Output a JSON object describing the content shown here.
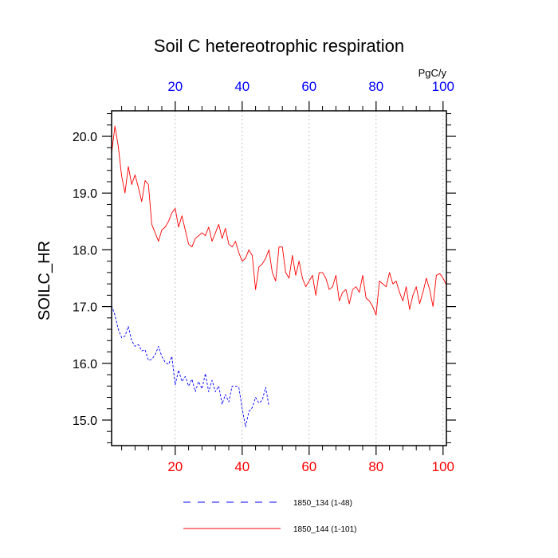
{
  "chart_data": {
    "type": "line",
    "title": "Soil C hetereotrophic respiration",
    "ylabel": "SOILC_HR",
    "units": "PgC/y",
    "xlim": [
      1,
      101
    ],
    "ylim": [
      14.55,
      20.45
    ],
    "grid": "vertical dotted gray",
    "x_ticks_bottom": [
      "20",
      "40",
      "60",
      "80",
      "100"
    ],
    "x_ticks_top": [
      "20",
      "40",
      "60",
      "80",
      "100"
    ],
    "y_ticks": [
      "15.0",
      "16.0",
      "17.0",
      "18.0",
      "19.0",
      "20.0"
    ],
    "x_tick_values": [
      20,
      40,
      60,
      80,
      100
    ],
    "y_tick_values": [
      15,
      16,
      17,
      18,
      19,
      20
    ],
    "legend_placement": "bottom",
    "series": [
      {
        "name": "1850_134 (1-48)",
        "color": "#0000ff",
        "style": "dashed",
        "x_start": 1,
        "values": [
          17.02,
          16.85,
          16.6,
          16.45,
          16.48,
          16.65,
          16.4,
          16.3,
          16.33,
          16.22,
          16.24,
          16.05,
          16.07,
          16.15,
          16.3,
          16.12,
          16.02,
          15.98,
          16.12,
          15.62,
          15.88,
          15.68,
          15.77,
          15.6,
          15.72,
          15.5,
          15.68,
          15.55,
          15.82,
          15.5,
          15.7,
          15.5,
          15.6,
          15.28,
          15.45,
          15.32,
          15.6,
          15.6,
          15.58,
          15.2,
          14.88,
          15.15,
          15.22,
          15.4,
          15.3,
          15.35,
          15.58,
          15.25
        ]
      },
      {
        "name": "1850_144 (1-101)",
        "color": "#ff0000",
        "style": "solid",
        "x_start": 1,
        "values": [
          19.7,
          20.18,
          19.82,
          19.3,
          19.0,
          19.47,
          19.15,
          19.32,
          19.1,
          18.85,
          19.22,
          19.15,
          18.45,
          18.3,
          18.15,
          18.35,
          18.4,
          18.5,
          18.65,
          18.73,
          18.4,
          18.6,
          18.35,
          18.1,
          18.05,
          18.2,
          18.25,
          18.3,
          18.25,
          18.4,
          18.15,
          18.3,
          18.45,
          18.2,
          18.38,
          18.1,
          18.05,
          18.15,
          17.95,
          17.8,
          17.85,
          18.0,
          17.9,
          17.3,
          17.7,
          17.75,
          17.85,
          18.0,
          17.6,
          17.45,
          18.05,
          18.05,
          17.6,
          17.5,
          17.9,
          17.55,
          17.8,
          17.5,
          17.35,
          17.45,
          17.55,
          17.2,
          17.6,
          17.6,
          17.5,
          17.3,
          17.35,
          17.55,
          17.1,
          17.25,
          17.3,
          17.05,
          17.3,
          17.35,
          17.25,
          17.55,
          17.15,
          17.1,
          17.0,
          16.85,
          17.45,
          17.4,
          17.35,
          17.6,
          17.4,
          17.45,
          17.25,
          17.1,
          17.35,
          16.95,
          17.2,
          17.35,
          17.05,
          17.25,
          17.5,
          17.3,
          17.0,
          17.55,
          17.58,
          17.5,
          17.38
        ]
      }
    ]
  }
}
